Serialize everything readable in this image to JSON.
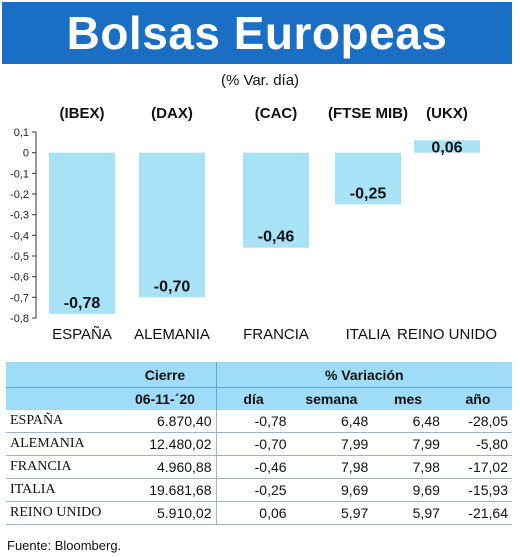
{
  "header": {
    "title": "Bolsas Europeas",
    "subtitle": "(% Var. día)"
  },
  "chart_data": {
    "type": "bar",
    "categories": [
      "ESPAÑA",
      "ALEMANIA",
      "FRANCIA",
      "ITALIA",
      "REINO UNIDO"
    ],
    "index_codes": [
      "(IBEX)",
      "(DAX)",
      "(CAC)",
      "(FTSE MIB)",
      "(UKX)"
    ],
    "values": [
      -0.78,
      -0.7,
      -0.46,
      -0.25,
      0.06
    ],
    "value_labels": [
      "-0,78",
      "-0,70",
      "-0,46",
      "-0,25",
      "0,06"
    ],
    "ylim": [
      -0.8,
      0.1
    ],
    "yticks": [
      "0,1",
      "0",
      "-0,1",
      "-0,2",
      "-0,3",
      "-0,4",
      "-0,5",
      "-0,6",
      "-0,7",
      "-0,8"
    ],
    "ytick_values": [
      0.1,
      0,
      -0.1,
      -0.2,
      -0.3,
      -0.4,
      -0.5,
      -0.6,
      -0.7,
      -0.8
    ],
    "bar_color": "#a8e2f7",
    "grid": false
  },
  "table": {
    "group_headers": {
      "cierre": "Cierre",
      "variacion": "% Variación"
    },
    "columns": {
      "date": "06-11-´20",
      "dia": "día",
      "semana": "semana",
      "mes": "mes",
      "ano": "año"
    },
    "rows": [
      {
        "name": "ESPAÑA",
        "cierre": "6.870,40",
        "dia": "-0,78",
        "semana": "6,48",
        "mes": "6,48",
        "ano": "-28,05"
      },
      {
        "name": "ALEMANIA",
        "cierre": "12.480,02",
        "dia": "-0,70",
        "semana": "7,99",
        "mes": "7,99",
        "ano": "-5,80"
      },
      {
        "name": "FRANCIA",
        "cierre": "4.960,88",
        "dia": "-0,46",
        "semana": "7,98",
        "mes": "7,98",
        "ano": "-17,02"
      },
      {
        "name": "ITALIA",
        "cierre": "19.681,68",
        "dia": "-0,25",
        "semana": "9,69",
        "mes": "9,69",
        "ano": "-15,93"
      },
      {
        "name": "REINO UNIDO",
        "cierre": "5.910,02",
        "dia": "0,06",
        "semana": "5,97",
        "mes": "5,97",
        "ano": "-21,64"
      }
    ],
    "header_color": "#9fdcf7"
  },
  "source": "Fuente: Bloomberg."
}
